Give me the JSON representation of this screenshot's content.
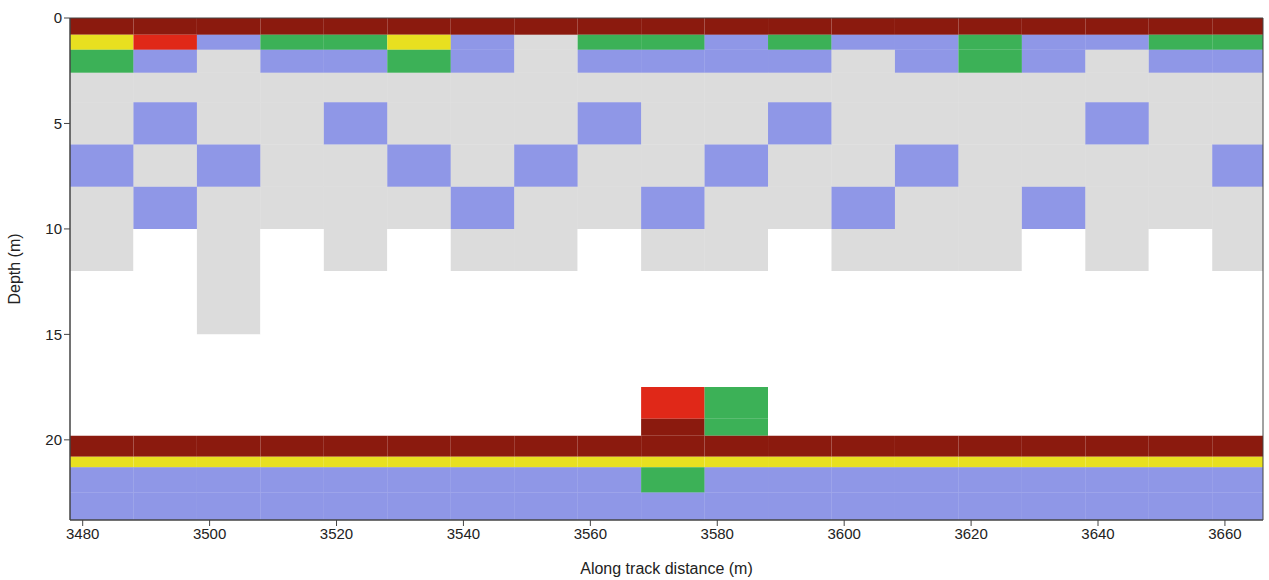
{
  "chart_data": {
    "type": "heatmap",
    "x_label": "Along track distance (m)",
    "y_label": "Depth (m)",
    "xlim": [
      3478,
      3666
    ],
    "xticks": [
      3480,
      3500,
      3520,
      3540,
      3560,
      3580,
      3600,
      3620,
      3640,
      3660
    ],
    "ylim": [
      0,
      23.8
    ],
    "yticks": [
      0,
      5,
      10,
      15,
      20
    ],
    "x_edges": [
      3478,
      3488,
      3498,
      3508,
      3518,
      3528,
      3538,
      3548,
      3558,
      3568,
      3578,
      3588,
      3598,
      3608,
      3618,
      3628,
      3638,
      3648,
      3658,
      3666
    ],
    "y_edges": [
      0,
      0.8,
      1.5,
      2.6,
      4,
      6,
      8,
      10,
      12,
      15,
      17.5,
      19,
      19.8,
      20.8,
      21.3,
      22.5,
      23.8
    ],
    "colors": [
      "#ffffff",
      "#9a9a9a",
      "#1f2fd0",
      "#1aa33a",
      "#e8e020",
      "#e02818",
      "#8b1a0e"
    ],
    "cells": [
      [
        6,
        6,
        6,
        6,
        6,
        6,
        6,
        6,
        6,
        6,
        6,
        6,
        6,
        6,
        6,
        6,
        6,
        6,
        6
      ],
      [
        4,
        5,
        2,
        3,
        3,
        4,
        2,
        1,
        3,
        3,
        2,
        3,
        2,
        2,
        3,
        2,
        2,
        3,
        3
      ],
      [
        3,
        2,
        1,
        2,
        2,
        3,
        2,
        1,
        2,
        2,
        2,
        2,
        1,
        2,
        3,
        2,
        1,
        2,
        2
      ],
      [
        1,
        1,
        1,
        1,
        1,
        1,
        1,
        1,
        1,
        1,
        1,
        1,
        1,
        1,
        1,
        1,
        1,
        1,
        1
      ],
      [
        1,
        2,
        1,
        1,
        2,
        1,
        1,
        1,
        2,
        1,
        1,
        2,
        1,
        1,
        1,
        1,
        2,
        1,
        1
      ],
      [
        2,
        1,
        2,
        1,
        1,
        2,
        1,
        2,
        1,
        1,
        2,
        1,
        1,
        2,
        1,
        1,
        1,
        1,
        2
      ],
      [
        1,
        2,
        1,
        1,
        1,
        1,
        2,
        1,
        1,
        2,
        1,
        1,
        2,
        1,
        1,
        2,
        1,
        1,
        1
      ],
      [
        1,
        0,
        1,
        0,
        1,
        0,
        1,
        1,
        0,
        1,
        1,
        0,
        1,
        1,
        1,
        0,
        1,
        0,
        1
      ],
      [
        0,
        0,
        1,
        0,
        0,
        0,
        0,
        0,
        0,
        0,
        0,
        0,
        0,
        0,
        0,
        0,
        0,
        0,
        0
      ],
      [
        0,
        0,
        0,
        0,
        0,
        0,
        0,
        0,
        0,
        0,
        0,
        0,
        0,
        0,
        0,
        0,
        0,
        0,
        0
      ],
      [
        0,
        0,
        0,
        0,
        0,
        0,
        0,
        0,
        0,
        5,
        3,
        0,
        0,
        0,
        0,
        0,
        0,
        0,
        0
      ],
      [
        0,
        0,
        0,
        0,
        0,
        0,
        0,
        0,
        0,
        6,
        3,
        0,
        0,
        0,
        0,
        0,
        0,
        0,
        0
      ],
      [
        6,
        6,
        6,
        6,
        6,
        6,
        6,
        6,
        6,
        6,
        6,
        6,
        6,
        6,
        6,
        6,
        6,
        6,
        6
      ],
      [
        4,
        4,
        4,
        4,
        4,
        4,
        4,
        4,
        4,
        4,
        4,
        4,
        4,
        4,
        4,
        4,
        4,
        4,
        4
      ],
      [
        2,
        2,
        2,
        2,
        2,
        2,
        2,
        2,
        2,
        3,
        2,
        2,
        2,
        2,
        2,
        2,
        2,
        2,
        2
      ],
      [
        2,
        2,
        2,
        2,
        2,
        2,
        2,
        2,
        2,
        2,
        2,
        2,
        2,
        2,
        2,
        2,
        2,
        2,
        2
      ]
    ]
  }
}
